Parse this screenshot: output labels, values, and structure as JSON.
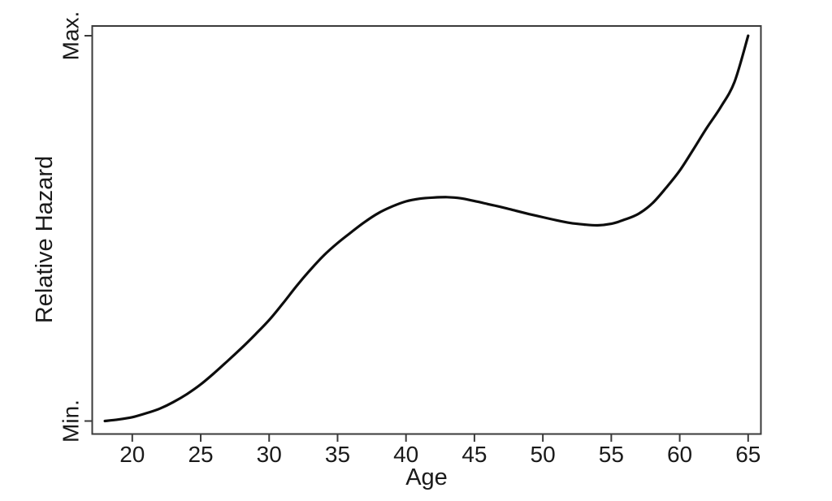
{
  "figure": {
    "background": "#ffffff"
  },
  "chart_data": {
    "type": "line",
    "title": "",
    "xlabel": "Age",
    "ylabel": "Relative Hazard",
    "x_ticks": [
      20,
      25,
      30,
      35,
      40,
      45,
      50,
      55,
      60,
      65
    ],
    "y_ticks": [
      {
        "label": "Min.",
        "value": 0
      },
      {
        "label": "Max.",
        "value": 1
      }
    ],
    "xlim": [
      17,
      66
    ],
    "ylim": [
      0,
      1
    ],
    "grid": false,
    "legend": false,
    "line_color": "#0d0d0d",
    "axis_color": "#3a3a3a",
    "text_color": "#1a1a1a",
    "series": [
      {
        "name": "relative-hazard",
        "x": [
          18,
          19,
          20,
          21,
          22,
          23,
          24,
          25,
          26,
          27,
          28,
          29,
          30,
          31,
          32,
          33,
          34,
          35,
          36,
          37,
          38,
          39,
          40,
          41,
          42,
          43,
          44,
          45,
          46,
          47,
          48,
          49,
          50,
          51,
          52,
          53,
          54,
          55,
          56,
          57,
          58,
          59,
          60,
          61,
          62,
          63,
          64,
          65
        ],
        "y": [
          0.0,
          0.004,
          0.01,
          0.02,
          0.032,
          0.049,
          0.07,
          0.095,
          0.125,
          0.157,
          0.19,
          0.225,
          0.262,
          0.305,
          0.35,
          0.392,
          0.43,
          0.462,
          0.49,
          0.517,
          0.54,
          0.557,
          0.57,
          0.577,
          0.58,
          0.581,
          0.578,
          0.571,
          0.563,
          0.555,
          0.546,
          0.537,
          0.529,
          0.521,
          0.514,
          0.51,
          0.508,
          0.512,
          0.523,
          0.538,
          0.565,
          0.605,
          0.65,
          0.705,
          0.762,
          0.815,
          0.88,
          1.0
        ]
      }
    ],
    "annotations": {
      "local_peak_age": 42.5,
      "local_dip_age": 53.5
    }
  }
}
